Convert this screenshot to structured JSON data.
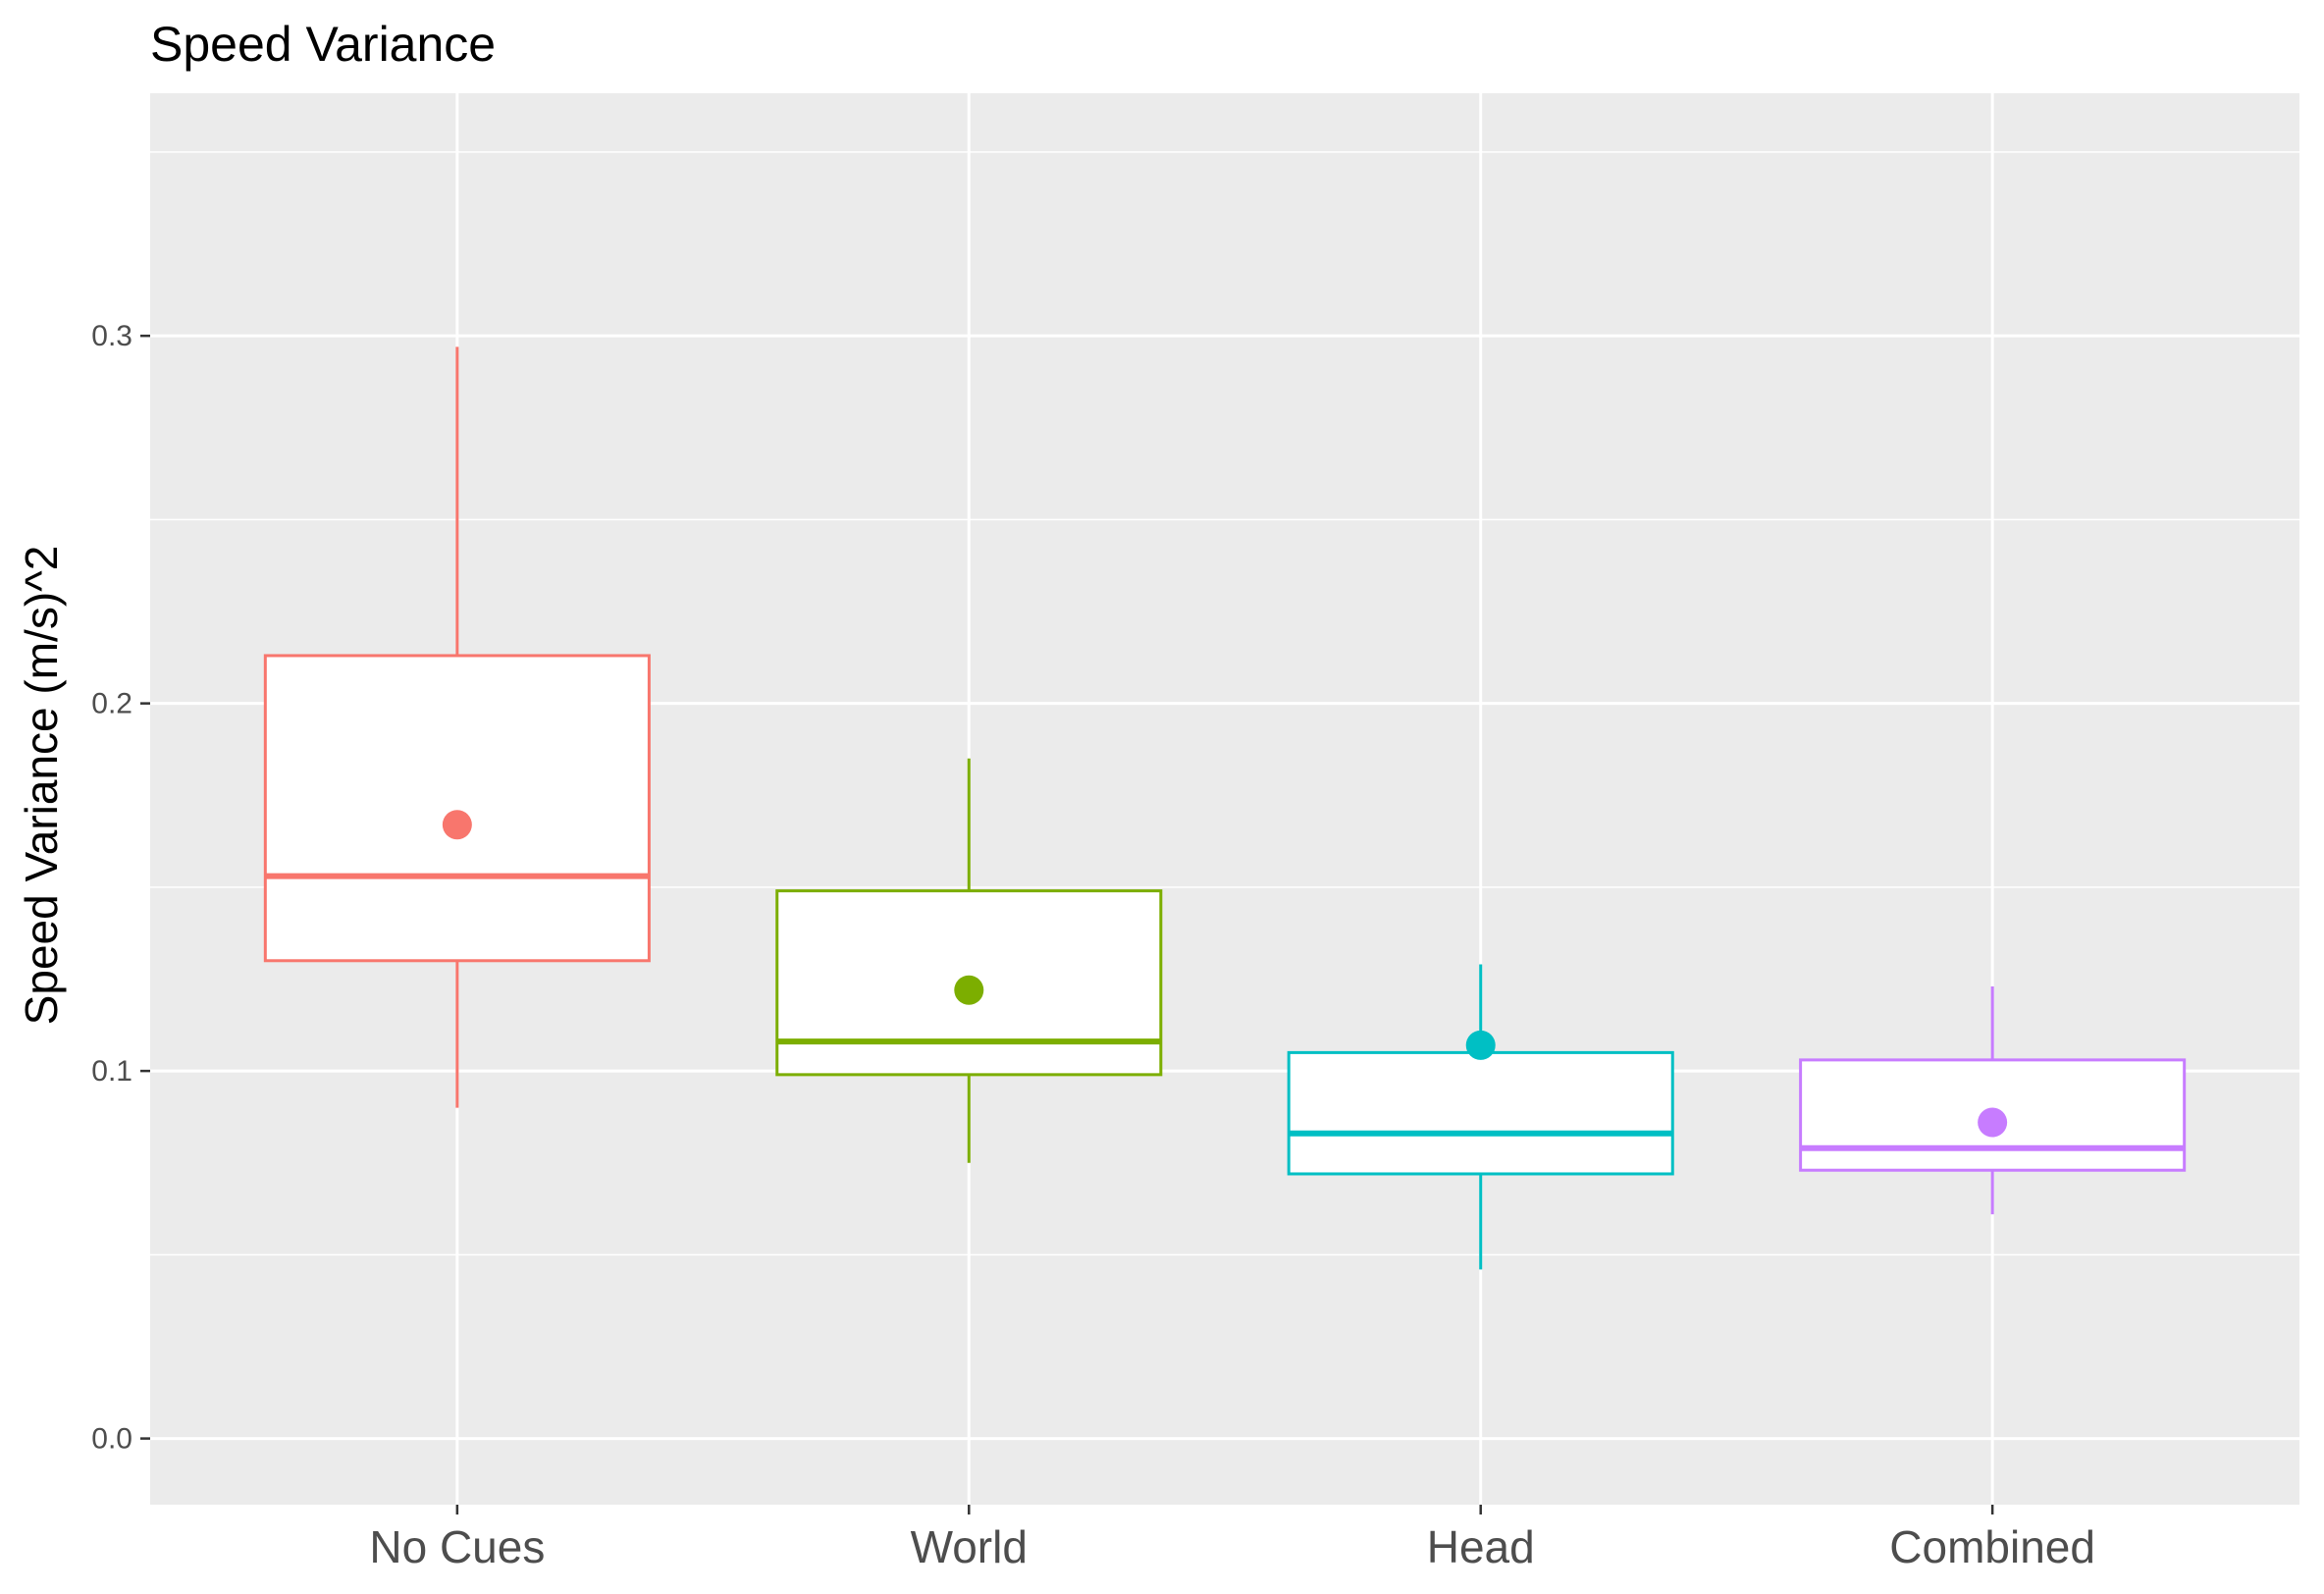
{
  "chart_data": {
    "type": "boxplot",
    "title": "Speed Variance",
    "xlabel": "",
    "ylabel": "Speed Variance (m/s)^2",
    "ylim": [
      -0.018,
      0.366
    ],
    "yticks": [
      0.0,
      0.1,
      0.2,
      0.3
    ],
    "ytick_labels": [
      "0.0",
      "0.1",
      "0.2",
      "0.3"
    ],
    "grid": true,
    "legend": "none",
    "categories": [
      "No Cues",
      "World",
      "Head",
      "Combined"
    ],
    "colors": [
      "#F8766D",
      "#7CAE00",
      "#00BFC4",
      "#C77CFF"
    ],
    "series": [
      {
        "category": "No Cues",
        "whisker_low": 0.09,
        "q1": 0.13,
        "median": 0.153,
        "q3": 0.213,
        "whisker_high": 0.297,
        "mean": 0.167
      },
      {
        "category": "World",
        "whisker_low": 0.075,
        "q1": 0.099,
        "median": 0.108,
        "q3": 0.149,
        "whisker_high": 0.185,
        "mean": 0.122
      },
      {
        "category": "Head",
        "whisker_low": 0.046,
        "q1": 0.072,
        "median": 0.083,
        "q3": 0.105,
        "whisker_high": 0.129,
        "mean": 0.107
      },
      {
        "category": "Combined",
        "whisker_low": 0.061,
        "q1": 0.073,
        "median": 0.079,
        "q3": 0.103,
        "whisker_high": 0.123,
        "mean": 0.086
      }
    ]
  }
}
